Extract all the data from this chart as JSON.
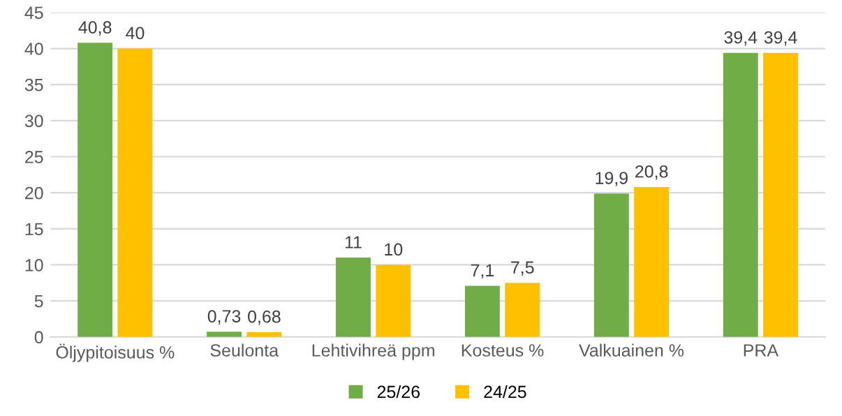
{
  "chart_data": {
    "type": "bar",
    "categories": [
      "Öljypitoisuus %",
      "Seulonta",
      "Lehtivihreä ppm",
      "Kosteus %",
      "Valkuainen %",
      "PRA"
    ],
    "series": [
      {
        "name": "25/26",
        "color": "#70ad47",
        "values": [
          40.8,
          0.73,
          11,
          7.1,
          19.9,
          39.4
        ],
        "value_labels": [
          "40,8",
          "0,73",
          "11",
          "7,1",
          "19,9",
          "39,4"
        ]
      },
      {
        "name": "24/25",
        "color": "#ffc000",
        "values": [
          40,
          0.68,
          10,
          7.5,
          20.8,
          39.4
        ],
        "value_labels": [
          "40",
          "0,68",
          "10",
          "7,5",
          "20,8",
          "39,4"
        ]
      }
    ],
    "ylim": [
      0,
      45
    ],
    "yticks": [
      0,
      5,
      10,
      15,
      20,
      25,
      30,
      35,
      40,
      45
    ],
    "grid": "y",
    "legend": "bottom"
  }
}
